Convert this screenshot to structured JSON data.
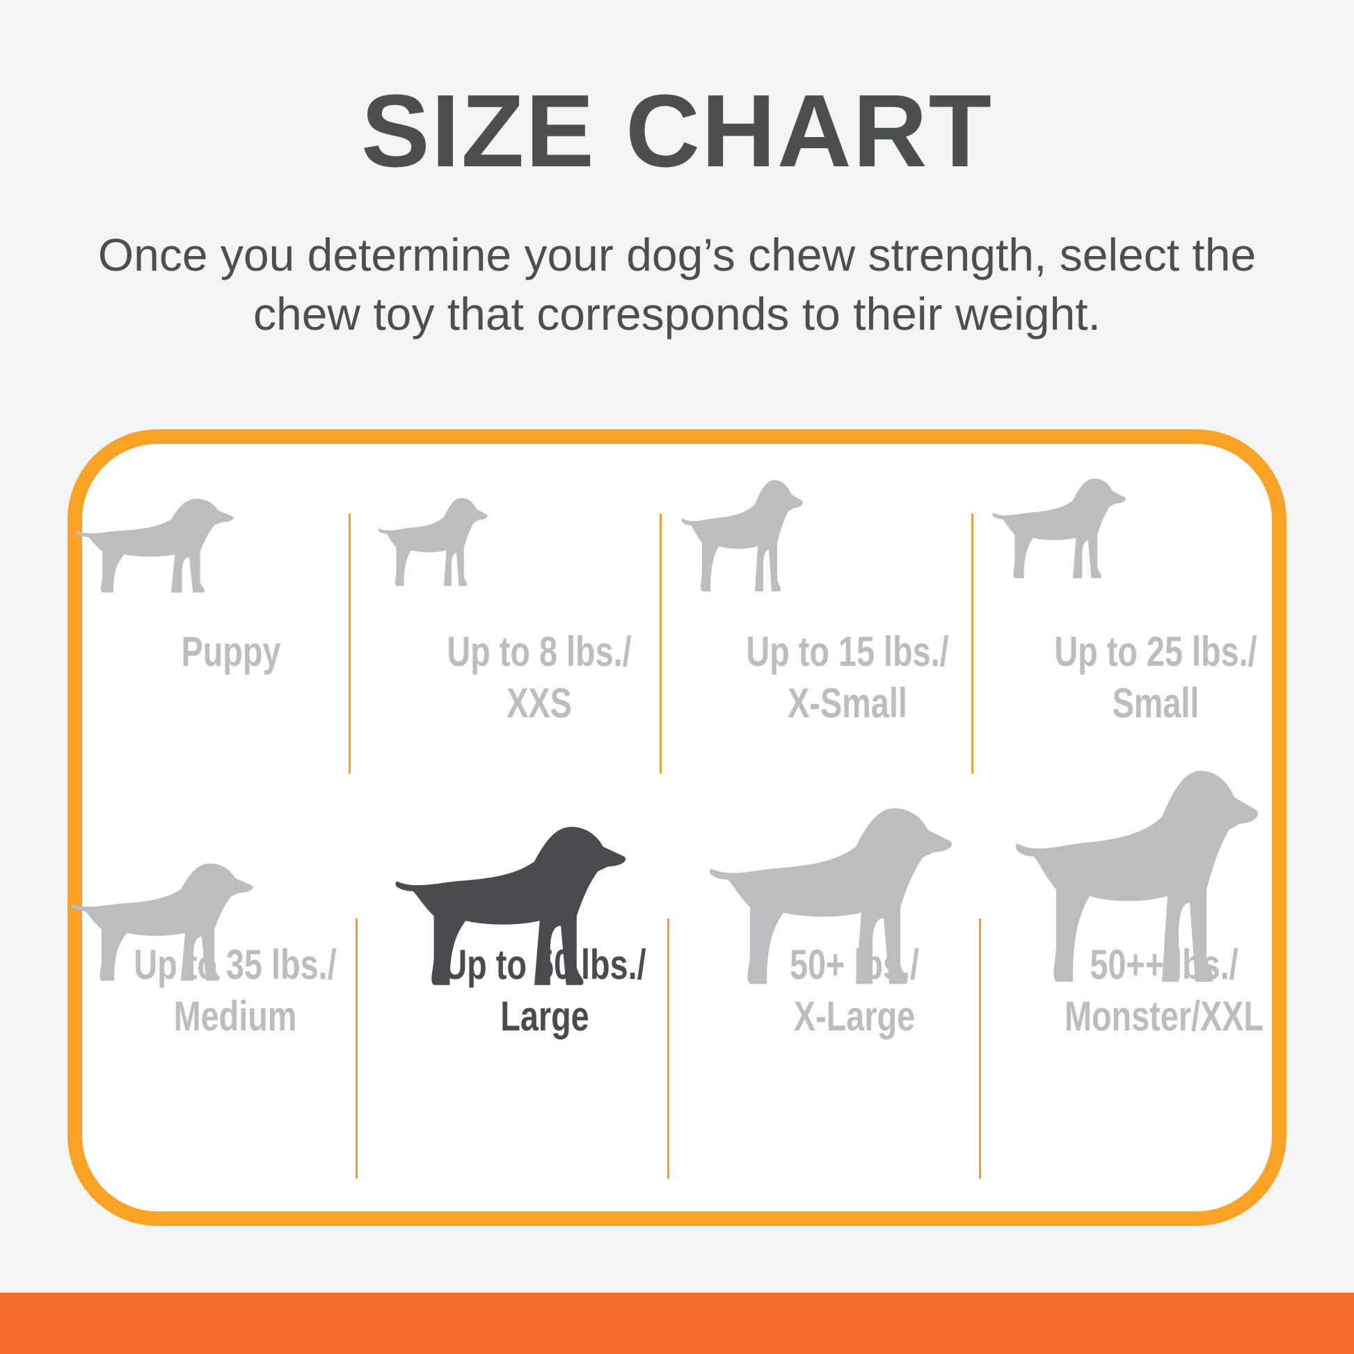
{
  "title": "SIZE CHART",
  "subtitle": [
    "Once you determine your dog’s chew strength, select the",
    "chew toy that corresponds to their weight."
  ],
  "colors": {
    "frame": "#f8a325",
    "bottom_bar": "#f26b27",
    "inactive": "#bcbdbf",
    "selected": "#4a4b4e"
  },
  "sizes": [
    {
      "line1": "Puppy",
      "line2": "",
      "icon": "puppy-icon",
      "selected": false
    },
    {
      "line1": "Up to 8 lbs./",
      "line2": "XXS",
      "icon": "chihuahua-icon",
      "selected": false
    },
    {
      "line1": "Up to 15 lbs./",
      "line2": "X-Small",
      "icon": "small-dog-icon",
      "selected": false
    },
    {
      "line1": "Up to 25 lbs./",
      "line2": "Small",
      "icon": "terrier-icon",
      "selected": false
    },
    {
      "line1": "Up to 35 lbs./",
      "line2": "Medium",
      "icon": "beagle-icon",
      "selected": false
    },
    {
      "line1": "Up to 50 lbs./",
      "line2": "Large",
      "icon": "labrador-icon",
      "selected": true
    },
    {
      "line1": "50+ lbs./",
      "line2": "X-Large",
      "icon": "shepherd-icon",
      "selected": false
    },
    {
      "line1": "50++ lbs./",
      "line2": "Monster/XXL",
      "icon": "great-dane-icon",
      "selected": false
    }
  ]
}
